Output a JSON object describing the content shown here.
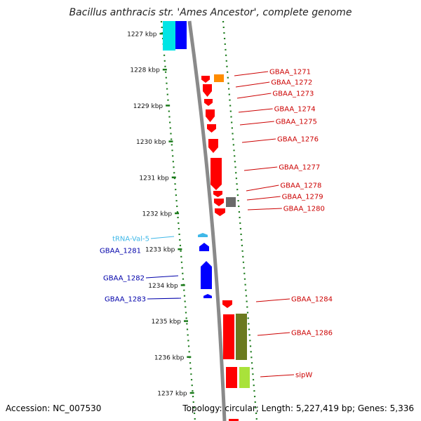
{
  "title": "Bacillus anthracis str. 'Ames Ancestor', complete genome",
  "footer": {
    "accession": "Accession: NC_007530",
    "summary": "Topology: circular; Length: 5,227,419 bp; Genes: 5,336"
  },
  "colors": {
    "forward": "#ff0000",
    "reverse": "#0000ff",
    "trna": "#3fb8e8",
    "orange": "#ff8c00",
    "gray": "#6a6a6a",
    "olive": "#6b7a1f",
    "lime": "#a9e23a",
    "cyan": "#00e5e5",
    "ticks": "#1a7a1a",
    "label_fwd": "#cc0000",
    "label_rev": "#0000aa",
    "label_trna": "#3fb8e8"
  },
  "scale_ticks": [
    {
      "label": "1227 kbp",
      "kbp": 1227
    },
    {
      "label": "1228 kbp",
      "kbp": 1228
    },
    {
      "label": "1229 kbp",
      "kbp": 1229
    },
    {
      "label": "1230 kbp",
      "kbp": 1230
    },
    {
      "label": "1231 kbp",
      "kbp": 1231
    },
    {
      "label": "1232 kbp",
      "kbp": 1232
    },
    {
      "label": "1233 kbp",
      "kbp": 1233
    },
    {
      "label": "1234 kbp",
      "kbp": 1234
    },
    {
      "label": "1235 kbp",
      "kbp": 1235
    },
    {
      "label": "1236 kbp",
      "kbp": 1236
    },
    {
      "label": "1237 kbp",
      "kbp": 1237
    }
  ],
  "gene_labels_right": [
    {
      "name": "GBAA_1271"
    },
    {
      "name": "GBAA_1272"
    },
    {
      "name": "GBAA_1273"
    },
    {
      "name": "GBAA_1274"
    },
    {
      "name": "GBAA_1275"
    },
    {
      "name": "GBAA_1276"
    },
    {
      "name": "GBAA_1277"
    },
    {
      "name": "GBAA_1278"
    },
    {
      "name": "GBAA_1279"
    },
    {
      "name": "GBAA_1280"
    },
    {
      "name": "GBAA_1284"
    },
    {
      "name": "GBAA_1286"
    },
    {
      "name": "sipW"
    }
  ],
  "gene_labels_left": [
    {
      "name": "tRNA-Val-5",
      "kind": "trna"
    },
    {
      "name": "GBAA_1281",
      "kind": "reverse"
    },
    {
      "name": "GBAA_1282",
      "kind": "reverse"
    },
    {
      "name": "GBAA_1283",
      "kind": "reverse"
    }
  ]
}
